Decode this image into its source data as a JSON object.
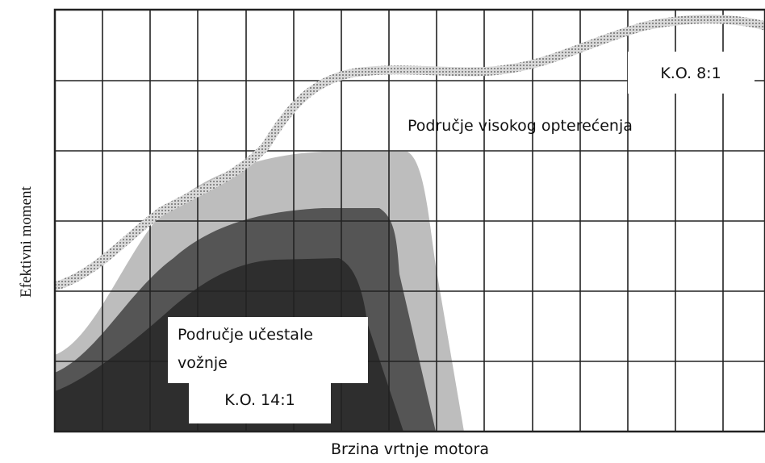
{
  "diagram": {
    "y_axis_label": "Efektivni moment",
    "x_axis_label": "Brzina vrtnje motora",
    "annotations": {
      "high_load_ratio": "K.O. 8:1",
      "high_load_region": "Područje visokog opterećenja",
      "frequent_driving_region": [
        "Područje učestale",
        "vožnje"
      ],
      "frequent_driving_ratio": "K.O. 14:1"
    }
  }
}
